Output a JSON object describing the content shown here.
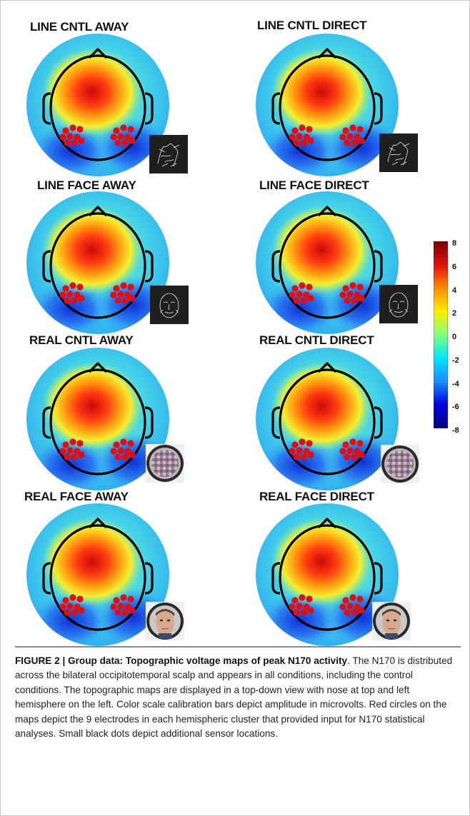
{
  "figure": {
    "panels": [
      {
        "title": "LINE CNTL AWAY",
        "stimulus": "line-drawing-hands-icon"
      },
      {
        "title": "LINE CNTL DIRECT",
        "stimulus": "line-drawing-hands-icon"
      },
      {
        "title": "LINE FACE AWAY",
        "stimulus": "line-drawing-face-icon"
      },
      {
        "title": "LINE FACE DIRECT",
        "stimulus": "line-drawing-face-icon"
      },
      {
        "title": "REAL CNTL AWAY",
        "stimulus": "scrambled-photo-icon"
      },
      {
        "title": "REAL CNTL DIRECT",
        "stimulus": "scrambled-photo-icon"
      },
      {
        "title": "REAL FACE AWAY",
        "stimulus": "face-photo-icon"
      },
      {
        "title": "REAL FACE DIRECT",
        "stimulus": "face-photo-icon"
      }
    ],
    "colorbar": {
      "ticks": [
        "8",
        "6",
        "4",
        "2",
        "0",
        "-2",
        "-4",
        "-6",
        "-8"
      ],
      "colors": [
        "#7a0000",
        "#e01010",
        "#ff8c00",
        "#ffee00",
        "#7fff7f",
        "#00e5ff",
        "#1a8cff",
        "#0000e0",
        "#00007a"
      ]
    }
  },
  "caption": {
    "label": "FIGURE 2 | Group data: Topographic voltage maps of peak N170 activity",
    "text": ". The N170 is distributed across the bilateral occipitotemporal scalp and appears in all conditions, including the control conditions. The topographic maps are displayed in a top-down view with nose at top and left hemisphere on the left. Color scale calibration bars depict amplitude in microvolts. Red circles on the maps depict the 9 electrodes in each hemispheric cluster that provided input for N170 statistical analyses. Small black dots depict additional sensor locations."
  }
}
